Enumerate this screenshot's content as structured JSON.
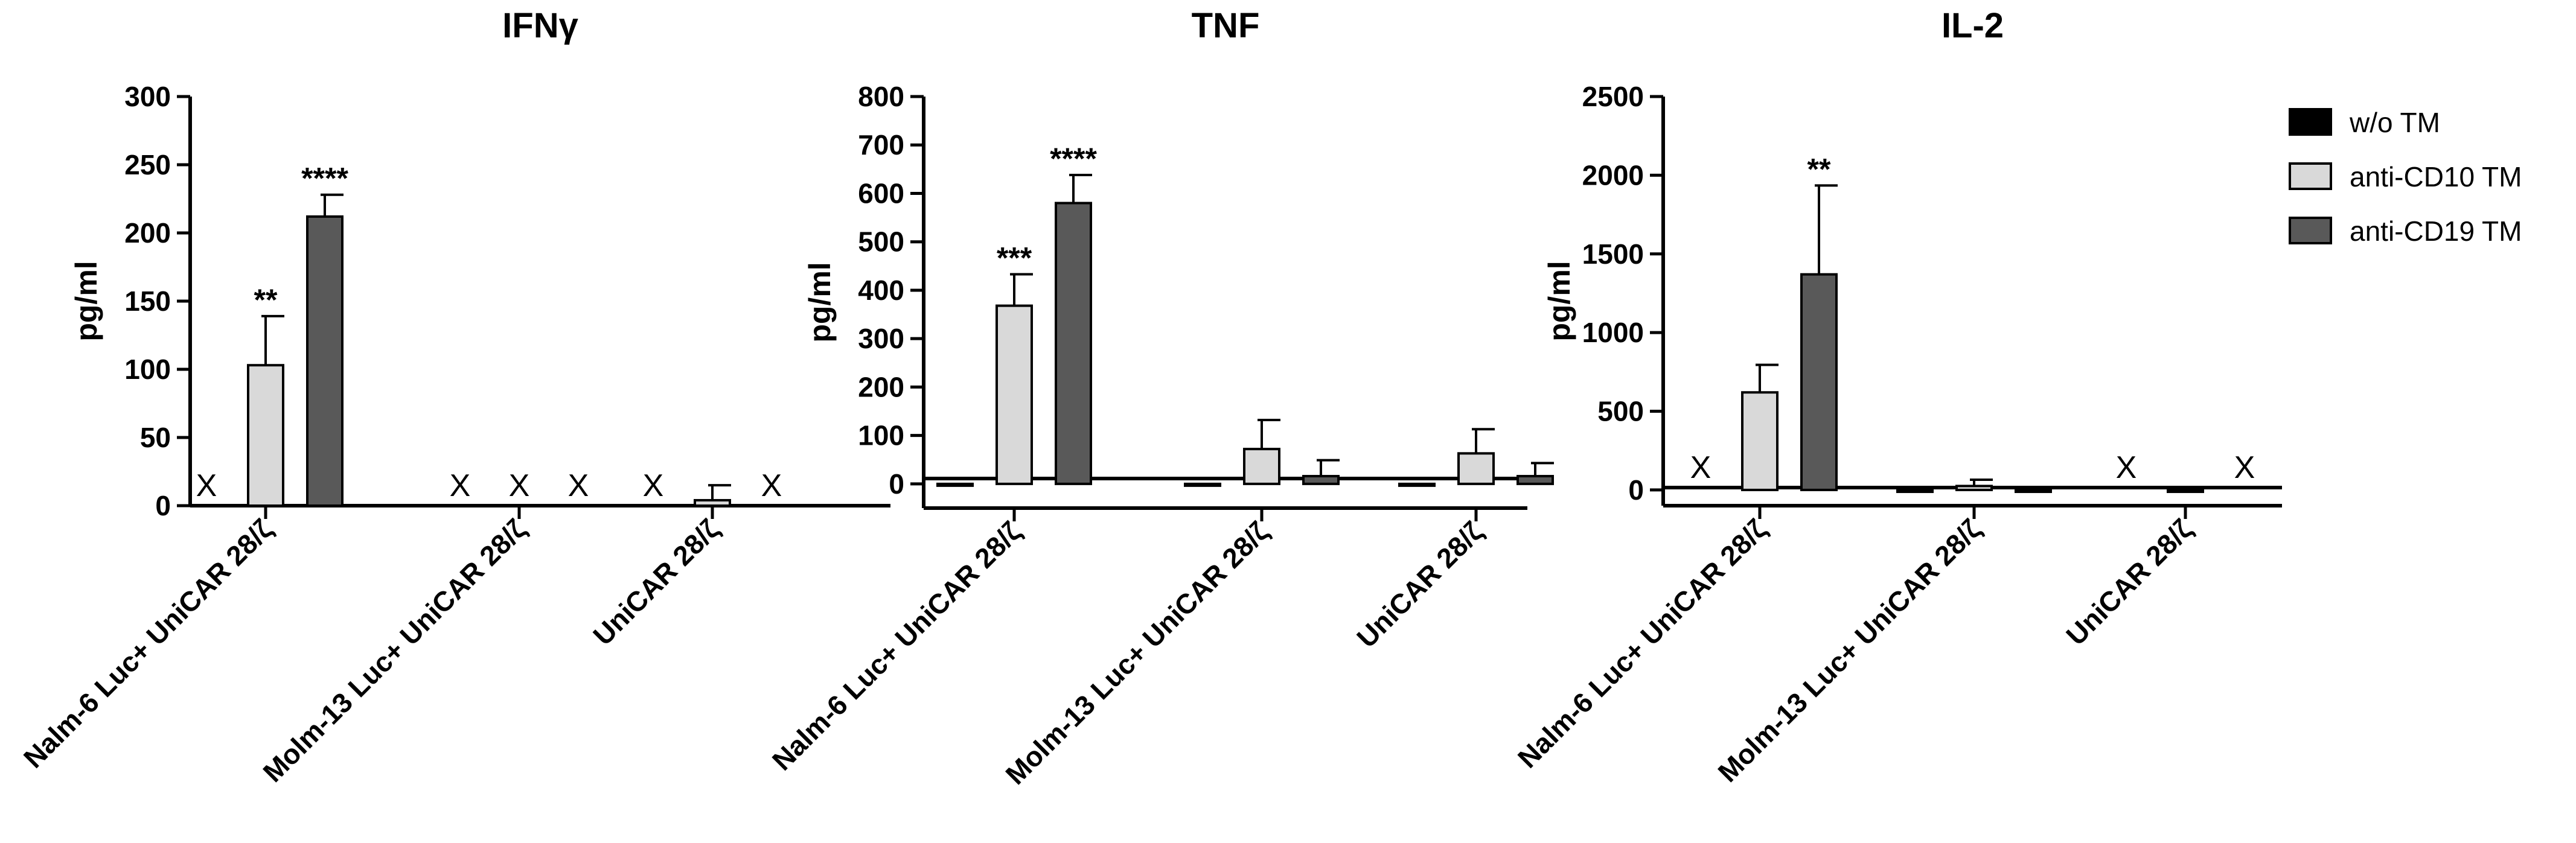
{
  "colors": {
    "w/o TM": "#000000",
    "anti-CD10 TM": "#d9d9d9",
    "anti-CD19 TM": "#595959"
  },
  "legend": [
    "w/o TM",
    "anti-CD10 TM",
    "anti-CD19 TM"
  ],
  "chart_data": [
    {
      "type": "bar",
      "title": "IFNγ",
      "ylabel": "pg/ml",
      "ylim": [
        0,
        300
      ],
      "yticks": [
        0,
        50,
        100,
        150,
        200,
        250,
        300
      ],
      "categories": [
        "Nalm-6 Luc+ UniCAR 28/ζ",
        "Molm-13 Luc+ UniCAR 28/ζ",
        "UniCAR 28/ζ"
      ],
      "series": [
        {
          "name": "w/o TM",
          "values": [
            null,
            null,
            null
          ],
          "errors": [
            0,
            0,
            0
          ]
        },
        {
          "name": "anti-CD10 TM",
          "values": [
            103,
            null,
            4
          ],
          "errors": [
            36,
            0,
            11
          ]
        },
        {
          "name": "anti-CD19 TM",
          "values": [
            212,
            null,
            null
          ],
          "errors": [
            16,
            0,
            0
          ]
        }
      ],
      "not_detected_marker": "X",
      "significance": [
        {
          "category": 0,
          "series": 1,
          "label": "**"
        },
        {
          "category": 0,
          "series": 2,
          "label": "****"
        }
      ]
    },
    {
      "type": "bar",
      "title": "TNF",
      "ylabel": "pg/ml",
      "ylim": [
        -50,
        800
      ],
      "yticks": [
        0,
        100,
        200,
        300,
        400,
        500,
        600,
        700,
        800
      ],
      "categories": [
        "Nalm-6 Luc+ UniCAR 28/ζ",
        "Molm-13 Luc+ UniCAR 28/ζ",
        "UniCAR 28/ζ"
      ],
      "series": [
        {
          "name": "w/o TM",
          "values": [
            -3,
            -3,
            -3
          ],
          "errors": [
            0,
            0,
            0
          ]
        },
        {
          "name": "anti-CD10 TM",
          "values": [
            368,
            72,
            63
          ],
          "errors": [
            65,
            60,
            50
          ]
        },
        {
          "name": "anti-CD19 TM",
          "values": [
            580,
            16,
            16
          ],
          "errors": [
            58,
            33,
            27
          ]
        }
      ],
      "not_detected_marker": "X",
      "significance": [
        {
          "category": 0,
          "series": 1,
          "label": "***"
        },
        {
          "category": 0,
          "series": 2,
          "label": "****"
        }
      ]
    },
    {
      "type": "bar",
      "title": "IL-2",
      "ylabel": "pg/ml",
      "ylim": [
        -100,
        2500
      ],
      "yticks": [
        0,
        500,
        1000,
        1500,
        2000,
        2500
      ],
      "categories": [
        "Nalm-6 Luc+ UniCAR 28/ζ",
        "Molm-13 Luc+ UniCAR 28/ζ",
        "UniCAR 28/ζ"
      ],
      "series": [
        {
          "name": "w/o TM",
          "values": [
            null,
            -12,
            null
          ],
          "errors": [
            0,
            0,
            0
          ]
        },
        {
          "name": "anti-CD10 TM",
          "values": [
            620,
            25,
            -12
          ],
          "errors": [
            175,
            40,
            0
          ]
        },
        {
          "name": "anti-CD19 TM",
          "values": [
            1370,
            -12,
            null
          ],
          "errors": [
            565,
            0,
            0
          ]
        }
      ],
      "not_detected_marker": "X",
      "significance": [
        {
          "category": 0,
          "series": 2,
          "label": "**"
        }
      ]
    }
  ]
}
